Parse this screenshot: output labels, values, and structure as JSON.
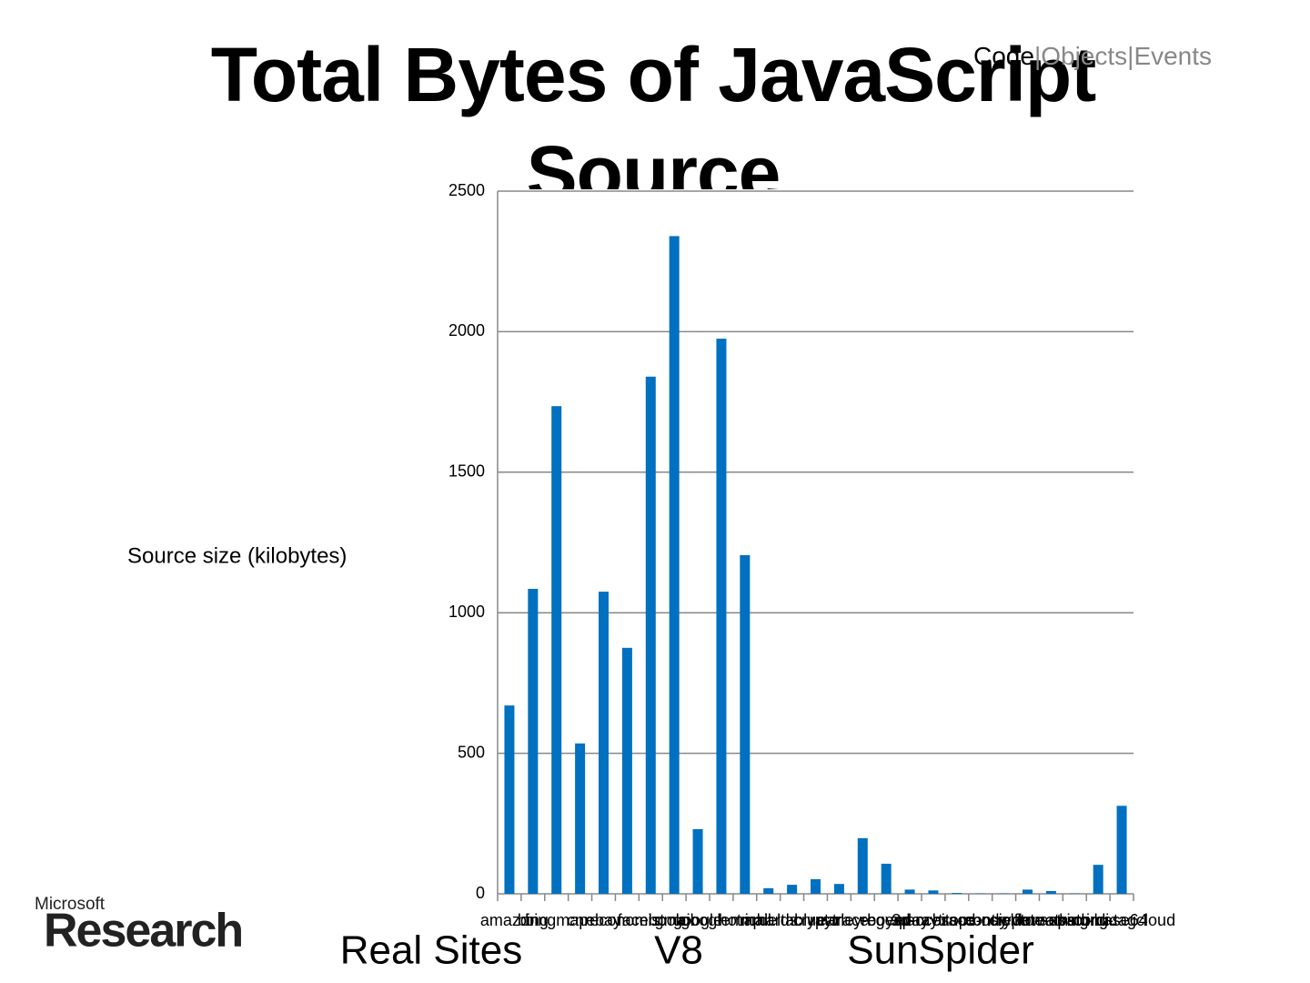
{
  "nav": {
    "items": [
      "Code",
      "Objects",
      "Events"
    ],
    "separator": "|"
  },
  "chart_data": {
    "type": "bar",
    "title": "Total Bytes of JavaScript Source",
    "y_label": "Source size (kilobytes)",
    "categories": [
      "amazon",
      "bing",
      "bingmap",
      "cnn",
      "ebay",
      "economist",
      "facebook",
      "gmail",
      "google",
      "googlemap",
      "hotmail",
      "richards",
      "deltablue",
      "crypto",
      "raytrace",
      "earley-boyer",
      "regexp",
      "splay",
      "3d-raytrace",
      "access-nbody",
      "bitops-nsieve",
      "controlflow",
      "crypto-aes",
      "date-xparb",
      "math-cordic",
      "string-base64",
      "string-tagcloud"
    ],
    "values": [
      670,
      1085,
      1735,
      535,
      1075,
      875,
      1840,
      2340,
      230,
      1975,
      1205,
      20,
      32,
      52,
      35,
      198,
      107,
      15,
      12,
      3,
      1,
      1,
      15,
      10,
      1,
      103,
      313
    ],
    "color": "#0070c0",
    "ylim": [
      0,
      2500
    ],
    "yticks": [
      0,
      500,
      1000,
      1500,
      2000,
      2500
    ],
    "grid": true
  },
  "groups": [
    "Real Sites",
    "V8",
    "SunSpider"
  ],
  "logo": {
    "top": "Microsoft",
    "bottom": "Research"
  }
}
